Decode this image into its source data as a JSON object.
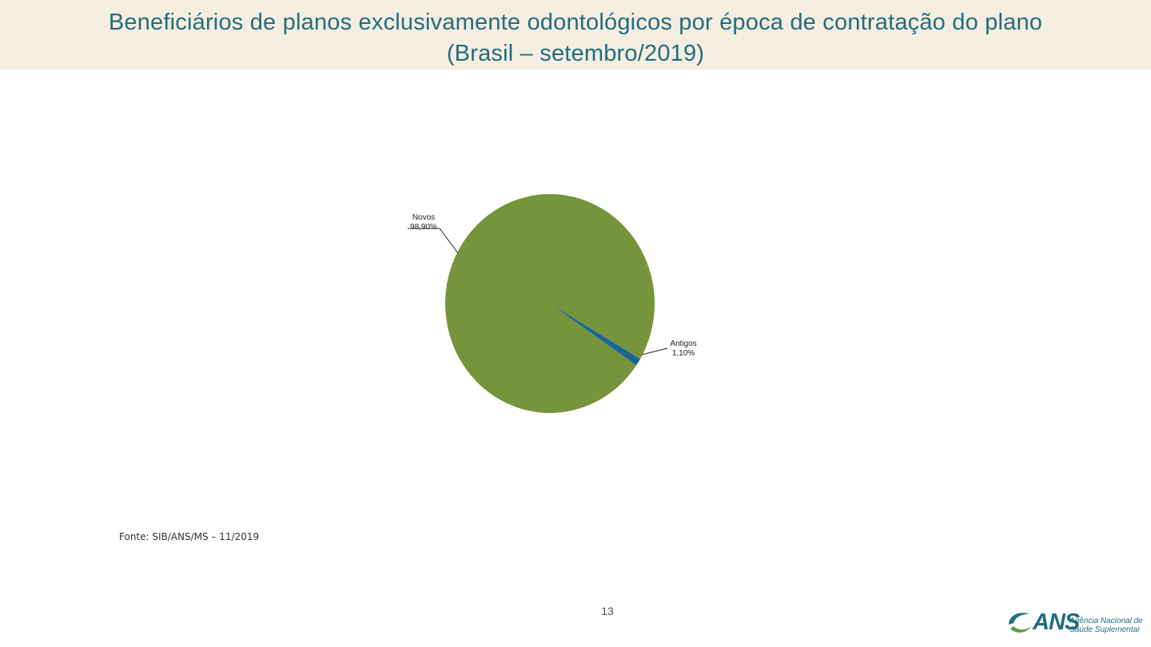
{
  "header": {
    "title_line1": "Beneficiários de planos exclusivamente odontológicos por época de contratação do plano",
    "title_line2": "(Brasil – setembro/2019)"
  },
  "chart_data": {
    "type": "pie",
    "labels": [
      "Novos",
      "Antigos"
    ],
    "values": [
      98.9,
      1.1
    ],
    "value_labels": [
      "98,90%",
      "1,10%"
    ],
    "colors": [
      "#76943b",
      "#1a6796"
    ]
  },
  "footer": {
    "source": "Fonte: SIB/ANS/MS – 11/2019",
    "page_number": "13"
  },
  "logo": {
    "name": "ANS",
    "line1": "Agência Nacional de",
    "line2": "Saúde Suplementar",
    "colors": {
      "blue": "#1f6e80",
      "green": "#5aa13a"
    }
  }
}
